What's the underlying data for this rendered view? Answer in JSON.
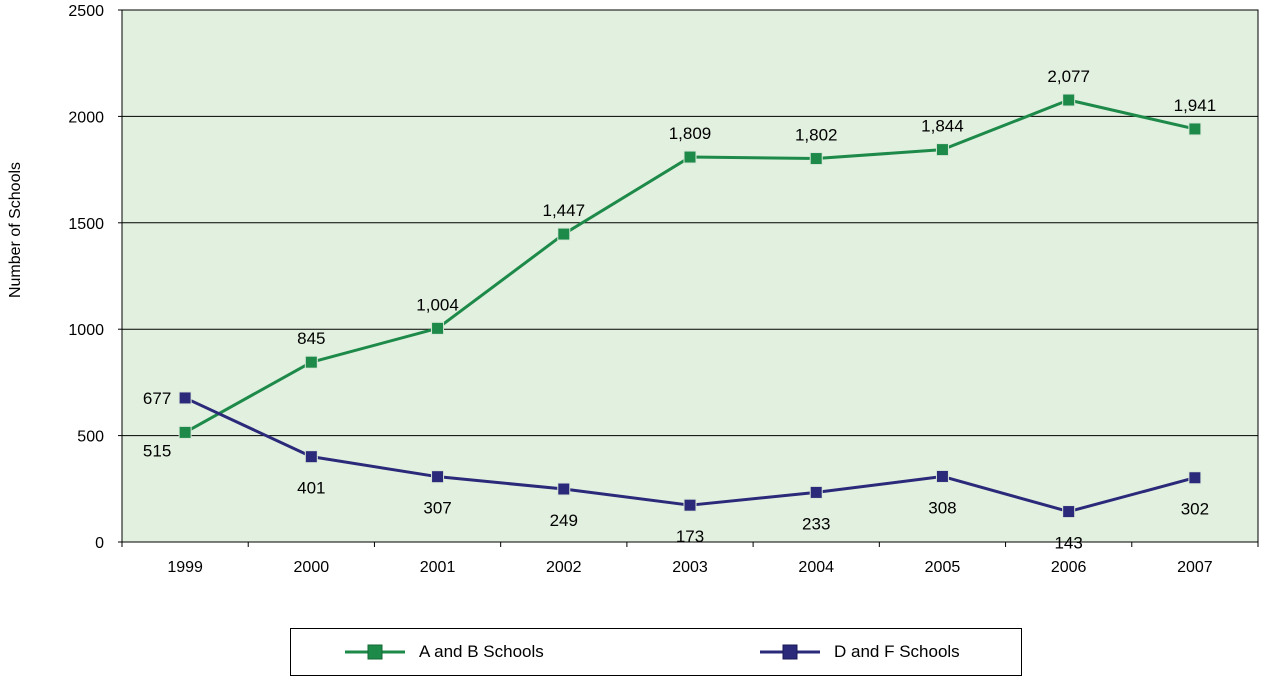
{
  "chart_data": {
    "type": "line",
    "title": "",
    "xlabel": "",
    "ylabel": "Number of Schools",
    "ylim": [
      0,
      2500
    ],
    "yticks": [
      0,
      500,
      1000,
      1500,
      2000,
      2500
    ],
    "categories": [
      "1999",
      "2000",
      "2001",
      "2002",
      "2003",
      "2004",
      "2005",
      "2006",
      "2007"
    ],
    "grid": true,
    "plot_background": "#e2f0df",
    "legend_position": "bottom",
    "series": [
      {
        "name": "A and B Schools",
        "color": "#1e8a4a",
        "values": [
          515,
          845,
          1004,
          1447,
          1809,
          1802,
          1844,
          2077,
          1941
        ],
        "labels": [
          "515",
          "845",
          "1,004",
          "1,447",
          "1,809",
          "1,802",
          "1,844",
          "2,077",
          "1,941"
        ]
      },
      {
        "name": "D and F Schools",
        "color": "#2b2a7a",
        "values": [
          677,
          401,
          307,
          249,
          173,
          233,
          308,
          143,
          302
        ],
        "labels": [
          "677",
          "401",
          "307",
          "249",
          "173",
          "233",
          "308",
          "143",
          "302"
        ]
      }
    ]
  }
}
